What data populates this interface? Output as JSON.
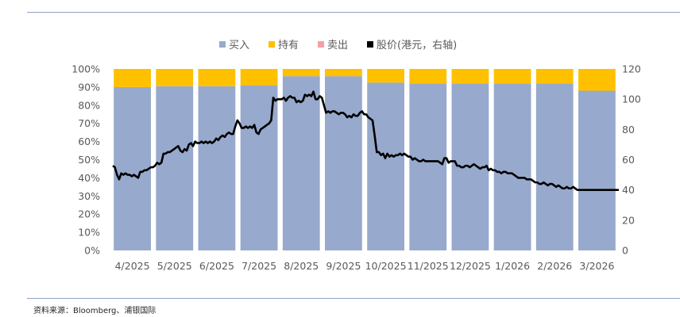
{
  "chart_data": {
    "type": "bar",
    "stacked": true,
    "categories": [
      "4/2025",
      "5/2025",
      "6/2025",
      "7/2025",
      "8/2025",
      "9/2025",
      "10/2025",
      "11/2025",
      "12/2025",
      "1/2026",
      "2/2026",
      "3/2026"
    ],
    "series": [
      {
        "name": "买入",
        "color": "#97a9cc",
        "values": [
          90,
          90.5,
          90.5,
          91,
          96,
          96,
          92.5,
          92,
          92,
          92,
          92,
          88
        ]
      },
      {
        "name": "持有",
        "color": "#ffc000",
        "values": [
          10,
          9.5,
          9.5,
          9,
          4,
          4,
          7.5,
          8,
          8,
          8,
          8,
          12
        ]
      },
      {
        "name": "卖出",
        "color": "#f4a0a6",
        "values": [
          0,
          0,
          0,
          0,
          0,
          0,
          0,
          0,
          0,
          0,
          0,
          0
        ]
      }
    ],
    "line_series": {
      "name": "股价(港元，右轴)",
      "color": "#000000",
      "axis": "right",
      "x": [
        0,
        0.05,
        0.1,
        0.15,
        0.2,
        0.25,
        0.3,
        0.35,
        0.4,
        0.45,
        0.5,
        0.55,
        0.6,
        0.65,
        0.7,
        0.75,
        0.8,
        0.85,
        0.9,
        0.95,
        1.0,
        1.05,
        1.1,
        1.15,
        1.2,
        1.25,
        1.3,
        1.35,
        1.4,
        1.45,
        1.5,
        1.55,
        1.6,
        1.65,
        1.7,
        1.75,
        1.8,
        1.85,
        1.9,
        1.95,
        2.0,
        2.05,
        2.1,
        2.15,
        2.2,
        2.25,
        2.3,
        2.35,
        2.4,
        2.45,
        2.5,
        2.55,
        2.6,
        2.65,
        2.7,
        2.75,
        2.8,
        2.85,
        2.9,
        2.95,
        3.0,
        3.05,
        3.1,
        3.15,
        3.2,
        3.25,
        3.3,
        3.35,
        3.4,
        3.45,
        3.5,
        3.55,
        3.6,
        3.65,
        3.7,
        3.75,
        3.8,
        3.85,
        3.9,
        3.95,
        4.0,
        4.05,
        4.1,
        4.15,
        4.2,
        4.25,
        4.3,
        4.35,
        4.4,
        4.45,
        4.5,
        4.55,
        4.6,
        4.65,
        4.7,
        4.75,
        4.8,
        4.85,
        4.9,
        4.95,
        5.0,
        5.05,
        5.1,
        5.15,
        5.2,
        5.25,
        5.3,
        5.35,
        5.4,
        5.45,
        5.5,
        5.55,
        5.6,
        5.65,
        5.7,
        5.75,
        5.8,
        5.85,
        5.9,
        5.95,
        6.0,
        6.05,
        6.1,
        6.15,
        6.2,
        6.25,
        6.3,
        6.35,
        6.4,
        6.45,
        6.5,
        6.55,
        6.6,
        6.65,
        6.7,
        6.75,
        6.8,
        6.85,
        6.9,
        6.95,
        7.0,
        7.05,
        7.1,
        7.15,
        7.2,
        7.25,
        7.3,
        7.35,
        7.4,
        7.45,
        7.5,
        7.55,
        7.6,
        7.65,
        7.7,
        7.75,
        7.8,
        7.85,
        7.9,
        7.95,
        8.0,
        8.05,
        8.1,
        8.15,
        8.2,
        8.25,
        8.3,
        8.35,
        8.4,
        8.45,
        8.5,
        8.55,
        8.6,
        8.65,
        8.7,
        8.75,
        8.8,
        8.85,
        8.9,
        8.95,
        9.0,
        9.05,
        9.1,
        9.15,
        9.2,
        9.25,
        9.3,
        9.35,
        9.4,
        9.45,
        9.5,
        9.55,
        9.6,
        9.65,
        9.7,
        9.75,
        9.8,
        9.85,
        9.9,
        9.95,
        10.0,
        10.05,
        10.1,
        10.15,
        10.2,
        10.25,
        10.3,
        10.35,
        10.4,
        10.45,
        10.5,
        10.55,
        10.6,
        10.65,
        10.7,
        10.75,
        10.8,
        10.85,
        10.9,
        10.95,
        11.0,
        11.05,
        11.1,
        11.15,
        11.2,
        11.25,
        11.3,
        11.35,
        11.4,
        11.45,
        11.5,
        11.55,
        11.6,
        11.65,
        11.7,
        11.75,
        11.8,
        11.85,
        11.95,
        11.98
      ],
      "values": [
        56,
        55,
        50,
        47,
        51,
        50,
        51,
        50,
        50,
        49,
        50,
        49,
        48,
        52,
        52,
        53,
        53,
        54,
        55,
        55,
        56,
        58,
        57,
        58,
        64,
        64,
        65,
        65,
        66,
        67,
        68,
        69,
        66,
        65,
        67,
        66,
        70,
        71,
        69,
        72,
        71,
        71,
        72,
        71,
        72,
        71,
        72,
        71,
        72,
        74,
        73,
        75,
        76,
        75,
        77,
        78,
        77,
        77,
        82,
        86,
        84,
        81,
        81,
        82,
        81,
        82,
        81,
        83,
        78,
        77,
        80,
        81,
        82,
        83,
        84,
        86,
        101,
        99,
        100,
        100,
        100,
        101,
        99,
        101,
        102,
        101,
        101,
        98,
        99,
        98,
        99,
        103,
        102,
        103,
        102,
        105,
        100,
        100,
        102,
        101,
        96,
        91,
        92,
        91,
        92,
        92,
        91,
        90,
        91,
        91,
        90,
        88,
        89,
        88,
        90,
        89,
        89,
        91,
        92,
        90,
        90,
        88,
        87,
        86,
        76,
        65,
        65,
        63,
        64,
        61,
        64,
        62,
        63,
        62,
        63,
        63,
        64,
        63,
        64,
        63,
        62,
        62,
        60,
        61,
        60,
        59,
        59,
        60,
        59,
        59,
        59,
        59,
        59,
        59,
        59,
        58,
        57,
        61,
        61,
        58,
        59,
        59,
        59,
        56,
        56,
        55,
        55,
        56,
        56,
        55,
        56,
        57,
        56,
        55,
        54,
        55,
        55,
        56,
        53,
        54,
        53,
        53,
        52,
        52,
        51,
        52,
        52,
        51,
        51,
        51,
        50,
        49,
        48,
        48,
        48,
        48,
        47,
        47,
        47,
        46,
        45,
        45,
        44,
        44,
        45,
        44,
        43,
        44,
        44,
        43,
        42,
        43,
        42,
        41,
        41,
        42,
        41,
        41,
        42,
        41,
        40,
        40,
        40,
        40,
        40,
        40,
        40,
        40,
        40,
        40,
        40,
        40,
        40,
        40,
        40,
        40,
        40,
        40,
        40,
        40
      ]
    },
    "left_axis": {
      "ticks": [
        "0%",
        "10%",
        "20%",
        "30%",
        "40%",
        "50%",
        "60%",
        "70%",
        "80%",
        "90%",
        "100%"
      ],
      "ylim": [
        0,
        100
      ]
    },
    "right_axis": {
      "ticks": [
        "0",
        "20",
        "40",
        "60",
        "80",
        "100",
        "120"
      ],
      "ylim": [
        0,
        120
      ]
    },
    "legend": {
      "position": "top",
      "items": [
        "买入",
        "持有",
        "卖出",
        "股价(港元，右轴)"
      ]
    },
    "grid": false
  },
  "source_text": "资料来源：Bloomberg、浦银国际"
}
